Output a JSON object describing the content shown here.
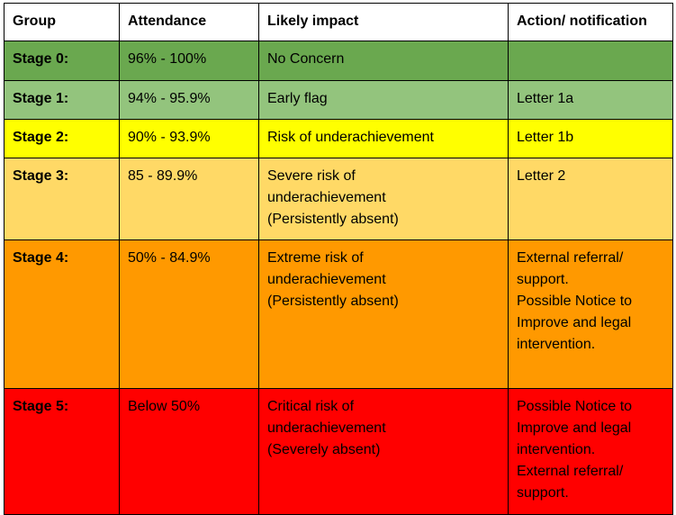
{
  "headers": [
    "Group",
    "Attendance",
    "Likely impact",
    "Action/ notification"
  ],
  "rows": [
    {
      "group": "Stage 0:",
      "attendance": "96% - 100%",
      "impact": [
        "No Concern"
      ],
      "action": [],
      "color": "#6aa84f"
    },
    {
      "group": "Stage 1:",
      "attendance": "94% - 95.9%",
      "impact": [
        "Early flag"
      ],
      "action": [
        "Letter 1a"
      ],
      "color": "#93c47d"
    },
    {
      "group": "Stage 2:",
      "attendance": "90% - 93.9%",
      "impact": [
        "Risk of underachievement"
      ],
      "action": [
        "Letter 1b"
      ],
      "color": "#ffff00"
    },
    {
      "group": "Stage 3:",
      "attendance": "85 - 89.9%",
      "impact": [
        "Severe risk of",
        "underachievement",
        "(Persistently absent)"
      ],
      "action": [
        "Letter 2"
      ],
      "color": "#ffd966"
    },
    {
      "group": "Stage 4:",
      "attendance": "50% - 84.9%",
      "impact": [
        "Extreme risk of",
        "underachievement",
        "(Persistently absent)"
      ],
      "action": [
        "External referral/",
        "support.",
        "Possible Notice to",
        "Improve and legal",
        "intervention."
      ],
      "color": "#ff9900"
    },
    {
      "group": "Stage 5:",
      "attendance": "Below 50%",
      "impact": [
        "Critical risk of",
        "underachievement",
        "(Severely absent)"
      ],
      "action": [
        "Possible Notice to",
        "Improve and legal",
        "intervention.",
        "External referral/",
        "support."
      ],
      "color": "#ff0000"
    }
  ]
}
